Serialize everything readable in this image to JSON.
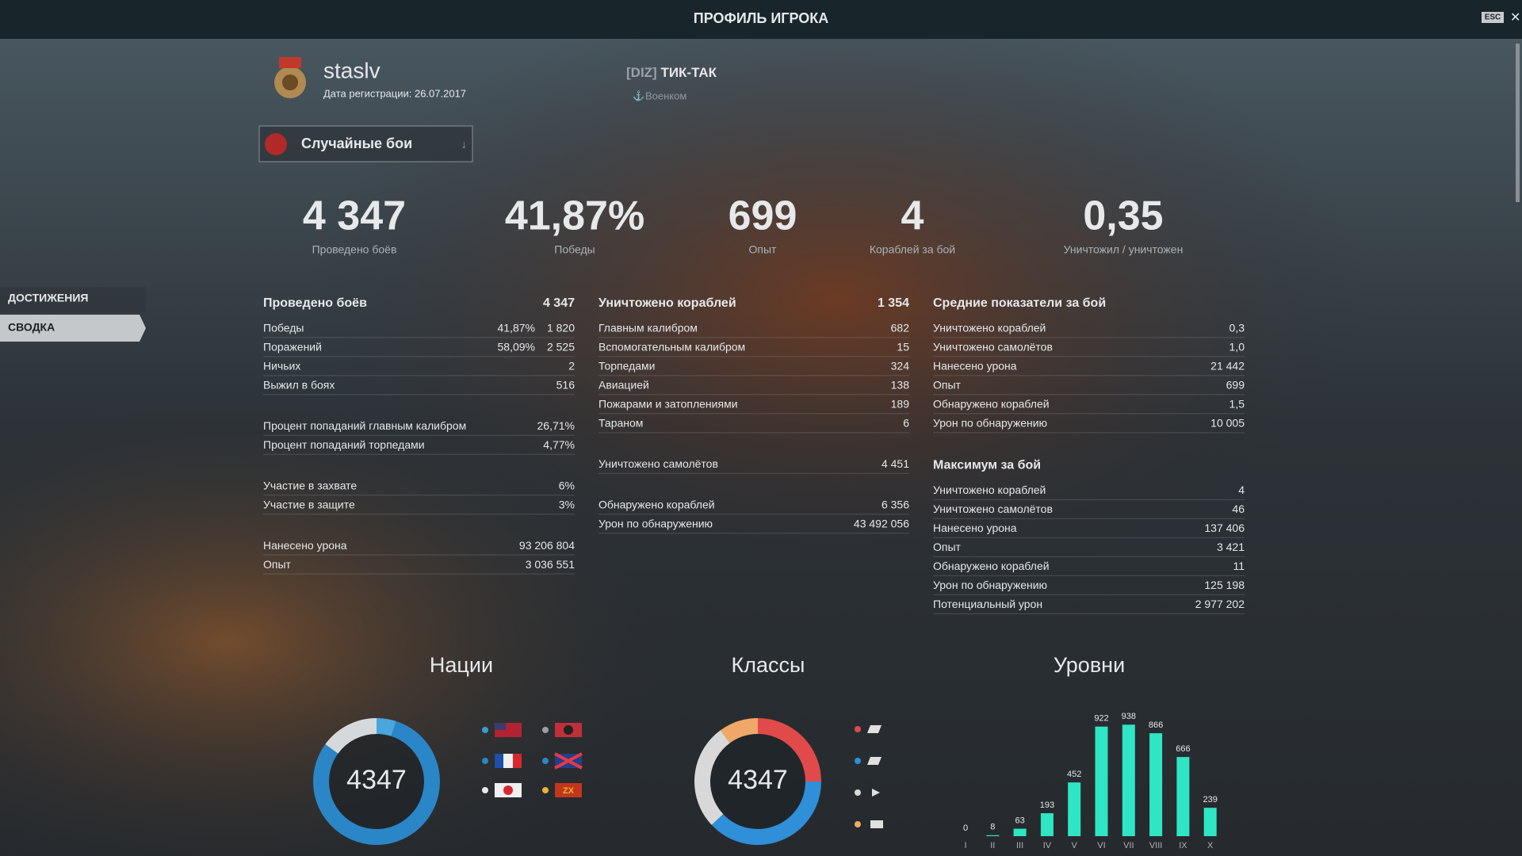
{
  "header": {
    "title": "ПРОФИЛЬ ИГРОКА",
    "esc": "ESC"
  },
  "player": {
    "name": "staslv",
    "registration": "Дата регистрации: 26.07.2017",
    "clan_tag": "[DIZ]",
    "clan_name": "ТИК-ТАК",
    "clan_role": "Военком"
  },
  "mode_selector": "Случайные бои",
  "nav": [
    "ДОСТИЖЕНИЯ",
    "СВОДКА"
  ],
  "summary": [
    {
      "value": "4 347",
      "label": "Проведено боёв"
    },
    {
      "value": "41,87%",
      "label": "Победы"
    },
    {
      "value": "699",
      "label": "Опыт"
    },
    {
      "value": "4",
      "label": "Кораблей за бой"
    },
    {
      "value": "0,35",
      "label": "Уничтожил / уничтожен"
    }
  ],
  "columns": [
    [
      {
        "title": "Проведено боёв",
        "total": "4 347",
        "rows": [
          [
            "Победы",
            "41,87%",
            "1 820"
          ],
          [
            "Поражений",
            "58,09%",
            "2 525"
          ],
          [
            "Ничьих",
            "2"
          ],
          [
            "Выжил в боях",
            "516"
          ]
        ]
      },
      {
        "rows": [
          [
            "Процент попаданий главным калибром",
            "26,71%"
          ],
          [
            "Процент попаданий торпедами",
            "4,77%"
          ]
        ]
      },
      {
        "rows": [
          [
            "Участие в захвате",
            "6%"
          ],
          [
            "Участие в защите",
            "3%"
          ]
        ]
      },
      {
        "rows": [
          [
            "Нанесено урона",
            "93 206 804"
          ],
          [
            "Опыт",
            "3 036 551"
          ]
        ]
      }
    ],
    [
      {
        "title": "Уничтожено кораблей",
        "total": "1 354",
        "rows": [
          [
            "Главным калибром",
            "682"
          ],
          [
            "Вспомогательным калибром",
            "15"
          ],
          [
            "Торпедами",
            "324"
          ],
          [
            "Авиацией",
            "138"
          ],
          [
            "Пожарами и затоплениями",
            "189"
          ],
          [
            "Тараном",
            "6"
          ]
        ]
      },
      {
        "rows": [
          [
            "Уничтожено самолётов",
            "4 451"
          ]
        ]
      },
      {
        "rows": [
          [
            "Обнаружено кораблей",
            "6 356"
          ],
          [
            "Урон по обнаружению",
            "43 492 056"
          ]
        ]
      }
    ],
    [
      {
        "title": "Средние показатели за бой",
        "rows": [
          [
            "Уничтожено кораблей",
            "0,3"
          ],
          [
            "Уничтожено самолётов",
            "1,0"
          ],
          [
            "Нанесено урона",
            "21 442"
          ],
          [
            "Опыт",
            "699"
          ],
          [
            "Обнаружено кораблей",
            "1,5"
          ],
          [
            "Урон по обнаружению",
            "10 005"
          ]
        ]
      },
      {
        "title": "Максимум за бой",
        "rows": [
          [
            "Уничтожено кораблей",
            "4"
          ],
          [
            "Уничтожено самолётов",
            "46"
          ],
          [
            "Нанесено урона",
            "137 406"
          ],
          [
            "Опыт",
            "3 421"
          ],
          [
            "Обнаружено кораблей",
            "11"
          ],
          [
            "Урон по обнаружению",
            "125 198"
          ],
          [
            "Потенциальный урон",
            "2 977 202"
          ]
        ]
      }
    ]
  ],
  "charts": {
    "nations": {
      "type": "donut",
      "title": "Нации",
      "center_label": "4347",
      "segments": [
        {
          "color": "#4aa6dc",
          "value": 5
        },
        {
          "color": "#2a86c6",
          "value": 80
        },
        {
          "color": "#d6d9dc",
          "value": 15
        }
      ]
    },
    "classes": {
      "type": "donut",
      "title": "Классы",
      "center_label": "4347",
      "segments": [
        {
          "color": "#e04a4a",
          "value": 25
        },
        {
          "color": "#2f8fd8",
          "value": 38
        },
        {
          "color": "#d8d8d8",
          "value": 27
        },
        {
          "color": "#f0a868",
          "value": 10
        }
      ]
    },
    "levels": {
      "type": "bar",
      "title": "Уровни",
      "categories": [
        "I",
        "II",
        "III",
        "IV",
        "V",
        "VI",
        "VII",
        "VIII",
        "IX",
        "X"
      ],
      "values": [
        0,
        8,
        63,
        193,
        452,
        922,
        938,
        866,
        666,
        239
      ],
      "color": "#2ee6c4",
      "ylim": [
        0,
        1000
      ]
    }
  }
}
